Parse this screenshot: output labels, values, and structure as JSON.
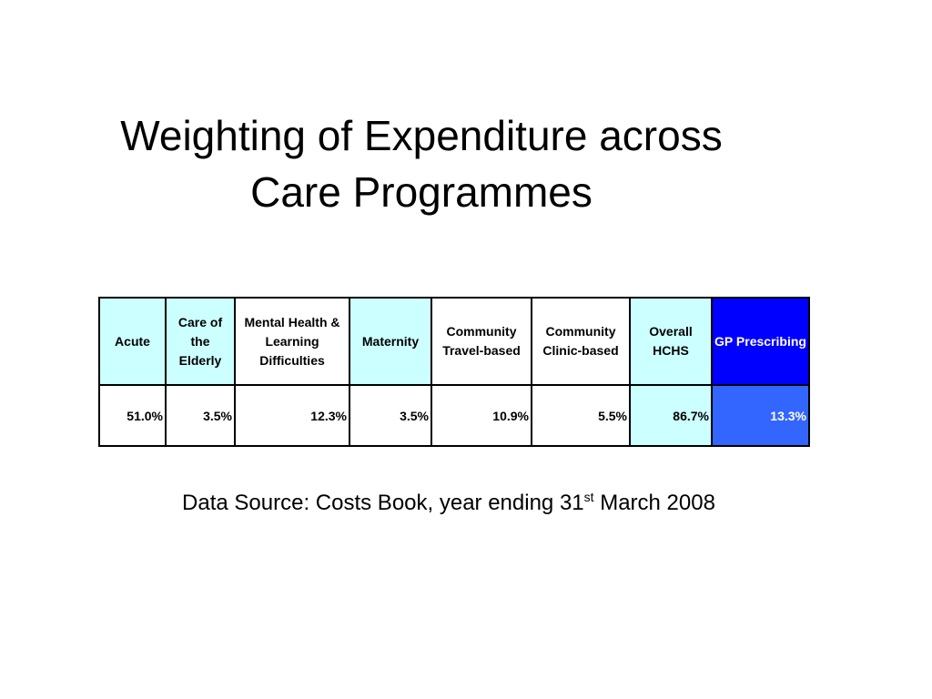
{
  "slide": {
    "title_line1": "Weighting of Expenditure across",
    "title_line2": "Care Programmes"
  },
  "table": {
    "headers": [
      {
        "label": "Acute",
        "bg": "#ccffff",
        "fg": "#000000"
      },
      {
        "label": "Care of the Elderly",
        "bg": "#ccffff",
        "fg": "#000000"
      },
      {
        "label": "Mental Health & Learning Difficulties",
        "bg": "#ffffff",
        "fg": "#000000"
      },
      {
        "label": "Maternity",
        "bg": "#ccffff",
        "fg": "#000000"
      },
      {
        "label": "Community Travel-based",
        "bg": "#ffffff",
        "fg": "#000000"
      },
      {
        "label": "Community Clinic-based",
        "bg": "#ffffff",
        "fg": "#000000"
      },
      {
        "label": "Overall HCHS",
        "bg": "#ccffff",
        "fg": "#000000"
      },
      {
        "label": "GP Prescribing",
        "bg": "#0000ff",
        "fg": "#ffffff"
      }
    ],
    "values": [
      {
        "value": "51.0%",
        "bg": "#ffffff",
        "fg": "#000000"
      },
      {
        "value": "3.5%",
        "bg": "#ffffff",
        "fg": "#000000"
      },
      {
        "value": "12.3%",
        "bg": "#ffffff",
        "fg": "#000000"
      },
      {
        "value": "3.5%",
        "bg": "#ffffff",
        "fg": "#000000"
      },
      {
        "value": "10.9%",
        "bg": "#ffffff",
        "fg": "#000000"
      },
      {
        "value": "5.5%",
        "bg": "#ffffff",
        "fg": "#000000"
      },
      {
        "value": "86.7%",
        "bg": "#ccffff",
        "fg": "#000000"
      },
      {
        "value": "13.3%",
        "bg": "#3366ff",
        "fg": "#ffffff"
      }
    ]
  },
  "source": {
    "prefix": "Data Source: Costs Book, year ending 31",
    "superscript": "st",
    "suffix": " March 2008"
  }
}
